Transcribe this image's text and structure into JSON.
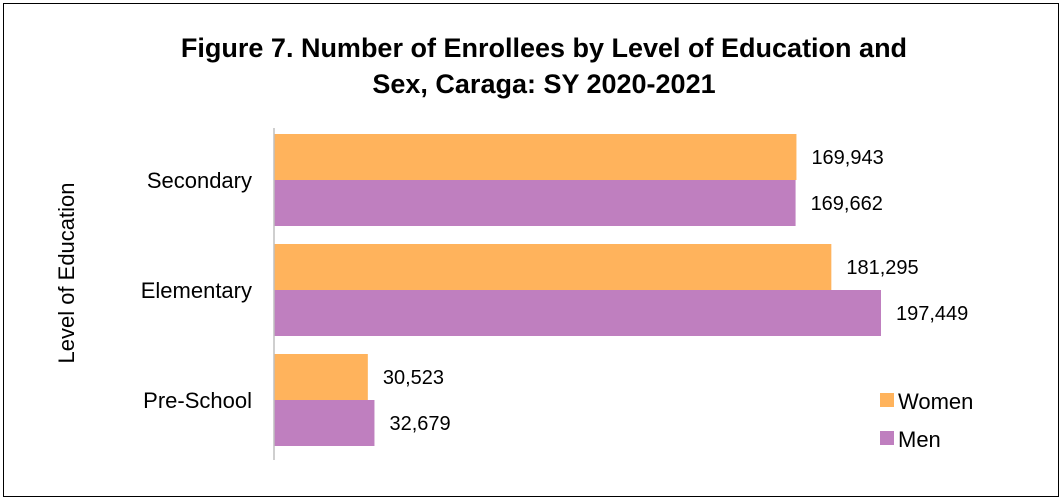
{
  "chart_data": {
    "type": "bar",
    "orientation": "horizontal",
    "title": "Figure 7. Number of Enrollees by Level of Education and Sex, Caraga: SY 2020-2021",
    "title_lines": [
      "Figure 7. Number of Enrollees by Level of Education and",
      "Sex, Caraga: SY 2020-2021"
    ],
    "ylabel": "Level of Education",
    "xlabel": "",
    "categories": [
      "Secondary",
      "Elementary",
      "Pre-School"
    ],
    "series": [
      {
        "name": "Women",
        "color": "#FFB35C",
        "values": [
          169943,
          181295,
          30523
        ],
        "labels": [
          "169,943",
          "181,295",
          "30,523"
        ]
      },
      {
        "name": "Men",
        "color": "#BF7FBF",
        "values": [
          169662,
          197449,
          32679
        ],
        "labels": [
          "169,662",
          "197,449",
          "32,679"
        ]
      }
    ],
    "xlim": [
      0,
      220000
    ],
    "grid": false,
    "legend_position": "bottom-right",
    "axis_color": "#BFBFBF"
  }
}
